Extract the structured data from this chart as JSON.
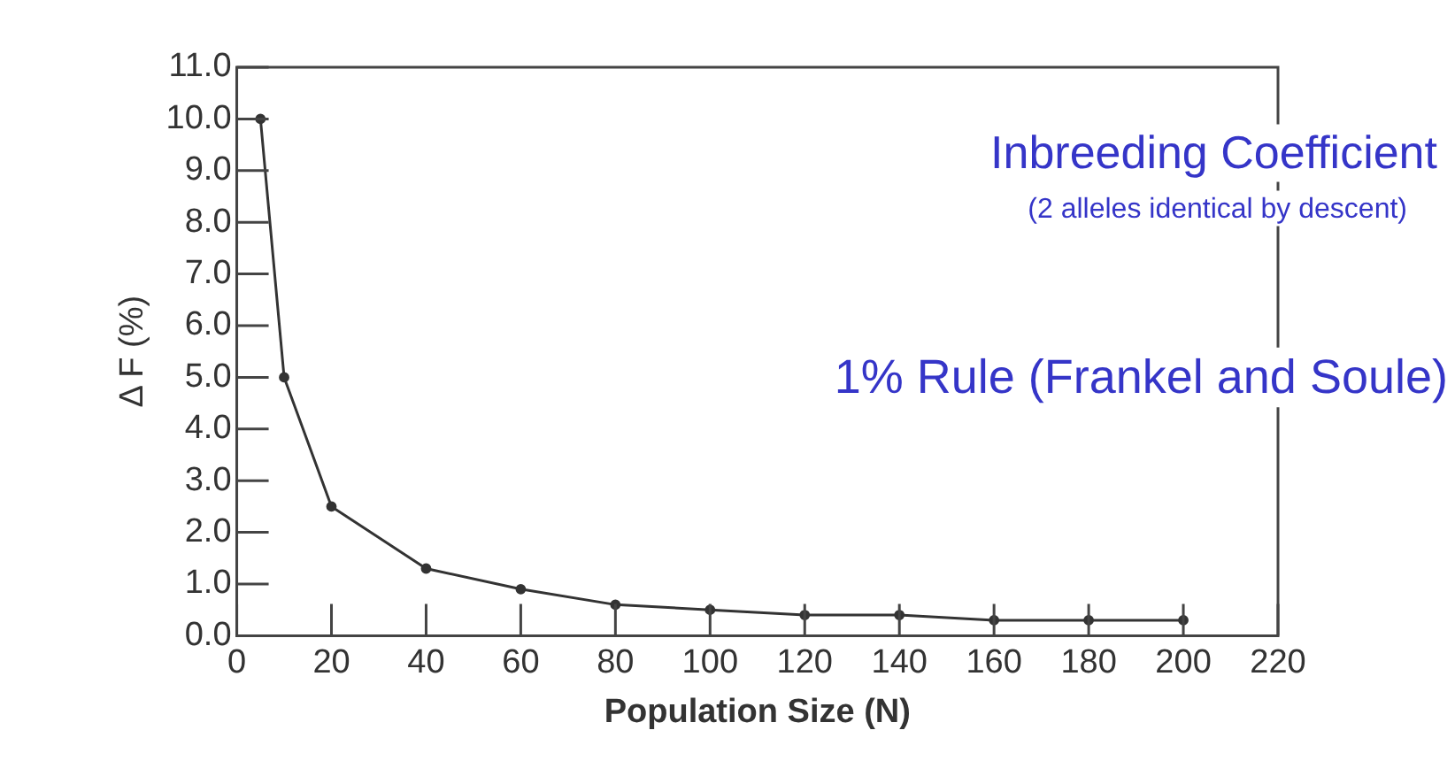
{
  "chart_data": {
    "type": "line",
    "x": [
      5,
      10,
      20,
      40,
      60,
      80,
      100,
      120,
      140,
      160,
      180,
      200
    ],
    "series": [
      {
        "color": "#333333",
        "values": [
          10.0,
          5.0,
          2.5,
          1.3,
          0.9,
          0.6,
          0.5,
          0.4,
          0.4,
          0.3,
          0.3,
          0.3
        ]
      }
    ],
    "xlabel": "Population Size (N)",
    "ylabel": "Δ F (%)",
    "xlim": [
      0,
      220
    ],
    "xticks": [
      0,
      20,
      40,
      60,
      80,
      100,
      120,
      140,
      160,
      180,
      200,
      220
    ],
    "ylim": [
      0,
      11
    ],
    "yticks": [
      {
        "value": 0,
        "label": "0.0"
      },
      {
        "value": 1,
        "label": "1.0"
      },
      {
        "value": 2,
        "label": "2.0"
      },
      {
        "value": 3,
        "label": "3.0"
      },
      {
        "value": 4,
        "label": "4.0"
      },
      {
        "value": 5,
        "label": "5.0"
      },
      {
        "value": 6,
        "label": "6.0"
      },
      {
        "value": 7,
        "label": "7.0"
      },
      {
        "value": 8,
        "label": "8.0"
      },
      {
        "value": 9,
        "label": "9.0"
      },
      {
        "value": 10,
        "label": "10.0"
      },
      {
        "value": 11,
        "label": "11.0"
      }
    ],
    "annotations": [
      "Inbreeding Coefficient",
      "(2 alleles identical by descent)",
      "1% Rule (Frankel and Soule)"
    ],
    "grid": false,
    "legend": false,
    "marker": "circle",
    "line_style": "solid"
  }
}
